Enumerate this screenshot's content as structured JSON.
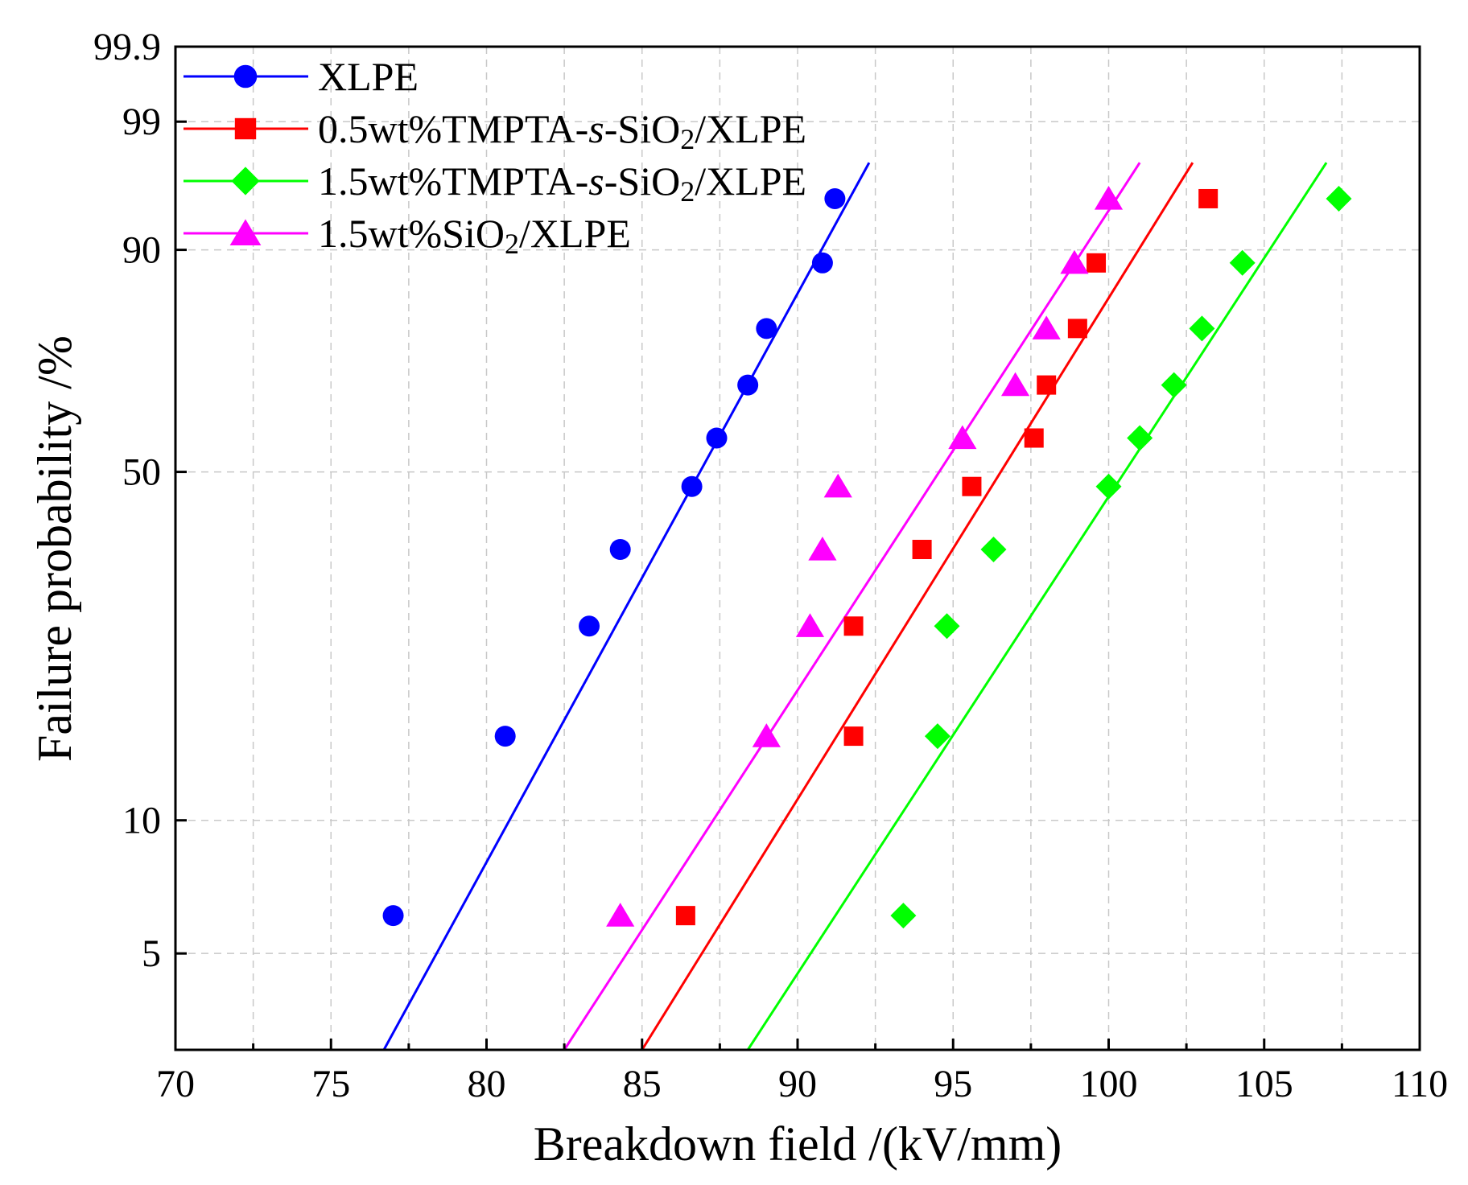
{
  "chart_data": {
    "type": "scatter",
    "xlabel": "Breakdown field /(kV/mm)",
    "ylabel": "Failure probability /%",
    "xlim": [
      70,
      110
    ],
    "x_ticks": [
      70,
      75,
      80,
      85,
      90,
      95,
      100,
      105,
      110
    ],
    "y_ticks": [
      5,
      10,
      50,
      90,
      99,
      99.9
    ],
    "ylim_percent": [
      3,
      99.9
    ],
    "y_scale": "weibull",
    "grid": true,
    "legend_position": "top-left",
    "series": [
      {
        "name": "XLPE",
        "color": "#0000ff",
        "marker": "circle",
        "x": [
          77.0,
          80.6,
          83.3,
          84.3,
          86.6,
          87.4,
          88.4,
          89.0,
          90.8,
          91.2
        ],
        "y": [
          6.1,
          15.3,
          26.0,
          36.6,
          47.3,
          56.5,
          67.0,
          77.8,
          88.3,
          95.2
        ],
        "fit": {
          "x": [
            76.7,
            92.3
          ],
          "y": [
            3.0,
            97.5
          ]
        }
      },
      {
        "name": "0.5wt%TMPTA-s-SiO2/XLPE",
        "color": "#ff0000",
        "marker": "square",
        "x": [
          86.4,
          91.8,
          91.8,
          94.0,
          95.6,
          97.6,
          98.0,
          99.0,
          99.6,
          103.2
        ],
        "y": [
          6.1,
          15.3,
          26.0,
          36.6,
          47.3,
          56.5,
          67.0,
          77.8,
          88.3,
          95.2
        ],
        "fit": {
          "x": [
            85.0,
            102.7
          ],
          "y": [
            3.0,
            97.5
          ]
        }
      },
      {
        "name": "1.5wt%TMPTA-s-SiO2/XLPE",
        "color": "#00ff00",
        "marker": "diamond",
        "x": [
          93.4,
          94.5,
          94.8,
          96.3,
          100.0,
          101.0,
          102.1,
          103.0,
          104.3,
          107.4
        ],
        "y": [
          6.1,
          15.3,
          26.0,
          36.6,
          47.3,
          56.5,
          67.0,
          77.8,
          88.3,
          95.2
        ],
        "fit": {
          "x": [
            88.4,
            107.0
          ],
          "y": [
            3.0,
            97.5
          ]
        }
      },
      {
        "name": "1.5wt%SiO2/XLPE",
        "color": "#ff00ff",
        "marker": "triangle",
        "x": [
          84.3,
          89.0,
          90.4,
          90.8,
          91.3,
          95.3,
          97.0,
          98.0,
          98.9,
          100.0
        ],
        "y": [
          6.1,
          15.3,
          26.0,
          36.6,
          47.3,
          56.5,
          67.0,
          77.8,
          88.3,
          95.2
        ],
        "fit": {
          "x": [
            82.5,
            101.0
          ],
          "y": [
            3.0,
            97.5
          ]
        }
      }
    ],
    "legend_labels": [
      {
        "pre": "XLPE"
      },
      {
        "pre": "0.5wt%TMPTA-",
        "italic": "s",
        "post": "-SiO",
        "sub": "2",
        "tail": "/XLPE"
      },
      {
        "pre": "1.5wt%TMPTA-",
        "italic": "s",
        "post": "-SiO",
        "sub": "2",
        "tail": "/XLPE"
      },
      {
        "pre": "1.5wt%SiO",
        "sub": "2",
        "tail": "/XLPE"
      }
    ]
  }
}
